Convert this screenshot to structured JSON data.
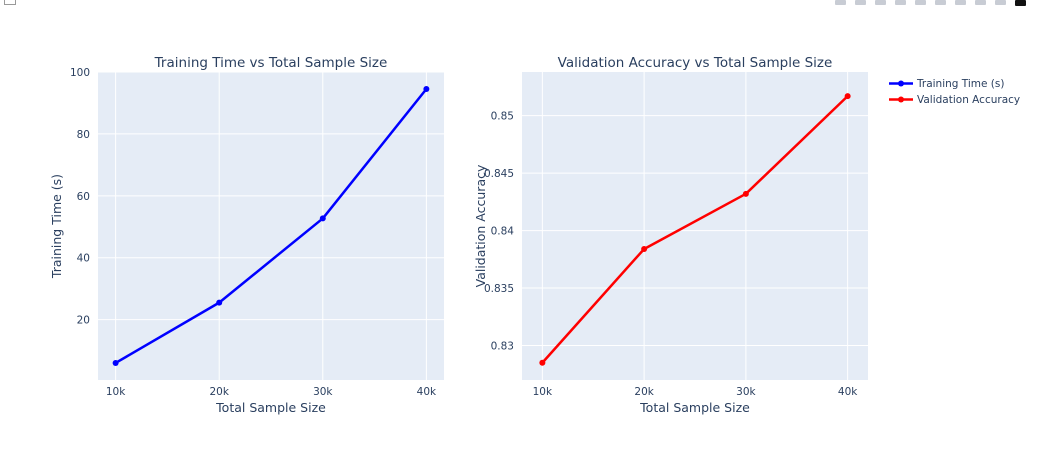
{
  "colors": {
    "plot_bg": "#e5ecf6",
    "grid": "#ffffff",
    "training": "#0000ff",
    "validation": "#ff0000"
  },
  "legend": [
    {
      "label": "Training Time (s)",
      "color": "#0000ff"
    },
    {
      "label": "Validation Accuracy",
      "color": "#ff0000"
    }
  ],
  "modebar_icons": [
    "download-icon",
    "zoom-icon",
    "pan-icon",
    "select-icon",
    "lasso-icon",
    "zoom-in-icon",
    "zoom-out-icon",
    "autoscale-icon",
    "reset-icon",
    "plotly-logo-icon"
  ],
  "chart_data": [
    {
      "type": "line",
      "title": "Training Time vs Total Sample Size",
      "xlabel": "Total Sample Size",
      "ylabel": "Training Time (s)",
      "x": [
        10000,
        20000,
        30000,
        40000
      ],
      "xticks": [
        10000,
        20000,
        30000,
        40000
      ],
      "xtick_labels": [
        "10k",
        "20k",
        "30k",
        "40k"
      ],
      "xlim": [
        8300,
        41700
      ],
      "yticks": [
        20,
        40,
        60,
        80,
        100
      ],
      "ytick_labels": [
        "20",
        "40",
        "60",
        "80",
        "100"
      ],
      "ylim": [
        0.5,
        100
      ],
      "grid": true,
      "series": [
        {
          "name": "Training Time (s)",
          "color": "#0000ff",
          "values": [
            6.0,
            25.5,
            52.7,
            94.5
          ]
        }
      ]
    },
    {
      "type": "line",
      "title": "Validation Accuracy vs Total Sample Size",
      "xlabel": "Total Sample Size",
      "ylabel": "Validation Accuracy",
      "x": [
        10000,
        20000,
        30000,
        40000
      ],
      "xticks": [
        10000,
        20000,
        30000,
        40000
      ],
      "xtick_labels": [
        "10k",
        "20k",
        "30k",
        "40k"
      ],
      "xlim": [
        8000,
        42000
      ],
      "yticks": [
        0.83,
        0.835,
        0.84,
        0.845,
        0.85
      ],
      "ytick_labels": [
        "0.83",
        "0.835",
        "0.84",
        "0.845",
        "0.85"
      ],
      "ylim": [
        0.827,
        0.8538
      ],
      "grid": true,
      "series": [
        {
          "name": "Validation Accuracy",
          "color": "#ff0000",
          "values": [
            0.8285,
            0.8384,
            0.8432,
            0.8517
          ]
        }
      ]
    }
  ]
}
